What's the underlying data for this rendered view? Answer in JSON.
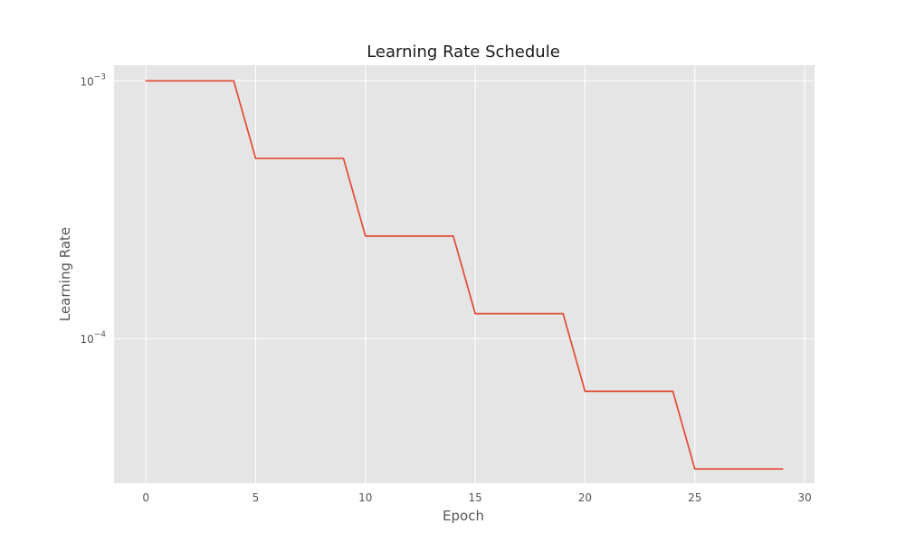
{
  "chart_data": {
    "type": "line",
    "title": "Learning Rate Schedule",
    "xlabel": "Epoch",
    "ylabel": "Learning Rate",
    "yscale": "log",
    "xlim": [
      -1.45,
      30.45
    ],
    "ylim": [
      2.75e-05,
      0.00115
    ],
    "x_ticks": [
      0,
      5,
      10,
      15,
      20,
      25,
      30
    ],
    "y_ticks": [
      {
        "value": 0.001,
        "base": "10",
        "exponent": "−3"
      },
      {
        "value": 0.0001,
        "base": "10",
        "exponent": "−4"
      }
    ],
    "grid": true,
    "colors": {
      "background": "#e5e5e5",
      "grid": "#ffffff",
      "line": "#e24a33"
    },
    "series": [
      {
        "x": [
          0,
          1,
          2,
          3,
          4,
          5,
          6,
          7,
          8,
          9,
          10,
          11,
          12,
          13,
          14,
          15,
          16,
          17,
          18,
          19,
          20,
          21,
          22,
          23,
          24,
          25,
          26,
          27,
          28,
          29
        ],
        "y": [
          0.001,
          0.001,
          0.001,
          0.001,
          0.001,
          0.0005,
          0.0005,
          0.0005,
          0.0005,
          0.0005,
          0.00025,
          0.00025,
          0.00025,
          0.00025,
          0.00025,
          0.000125,
          0.000125,
          0.000125,
          0.000125,
          0.000125,
          6.25e-05,
          6.25e-05,
          6.25e-05,
          6.25e-05,
          6.25e-05,
          3.125e-05,
          3.125e-05,
          3.125e-05,
          3.125e-05,
          3.125e-05
        ]
      }
    ]
  }
}
